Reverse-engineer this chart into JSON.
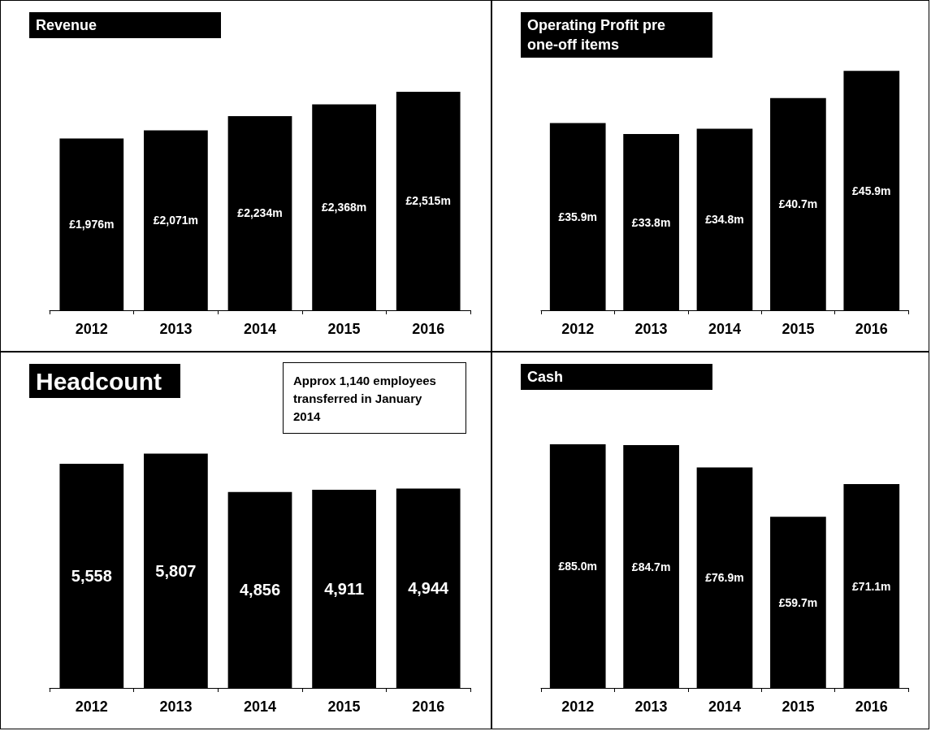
{
  "chart_data": [
    {
      "type": "bar",
      "title": "Revenue",
      "categories": [
        "2012",
        "2013",
        "2014",
        "2015",
        "2016"
      ],
      "values": [
        1976,
        2071,
        2234,
        2368,
        2515
      ],
      "value_labels": [
        "£1,976m",
        "£2,071m",
        "£2,234m",
        "£2,368m",
        "£2,515m"
      ],
      "color": "#000000"
    },
    {
      "type": "bar",
      "title": "Operating Profit pre one-off items",
      "categories": [
        "2012",
        "2013",
        "2014",
        "2015",
        "2016"
      ],
      "values": [
        35.9,
        33.8,
        34.8,
        40.7,
        45.9
      ],
      "value_labels": [
        "£35.9m",
        "£33.8m",
        "£34.8m",
        "£40.7m",
        "£45.9m"
      ],
      "color": "#000000"
    },
    {
      "type": "bar",
      "title": "Headcount",
      "categories": [
        "2012",
        "2013",
        "2014",
        "2015",
        "2016"
      ],
      "values": [
        5558,
        5807,
        4856,
        4911,
        4944
      ],
      "value_labels": [
        "5,558",
        "5,807",
        "4,856",
        "4,911",
        "4,944"
      ],
      "color": "#000000",
      "annotations": [
        "Approx 1,140 employees transferred in January 2014"
      ]
    },
    {
      "type": "bar",
      "title": "Cash",
      "categories": [
        "2012",
        "2013",
        "2014",
        "2015",
        "2016"
      ],
      "values": [
        85.0,
        84.7,
        76.9,
        59.7,
        71.1
      ],
      "value_labels": [
        "£85.0m",
        "£84.7m",
        "£76.9m",
        "£59.7m",
        "£71.1m"
      ],
      "color": "#000000"
    }
  ]
}
